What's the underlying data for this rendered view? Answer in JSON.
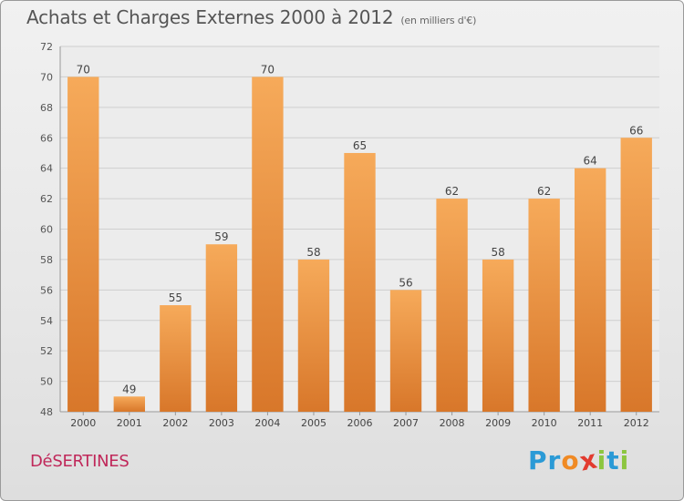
{
  "title": "Achats et Charges Externes 2000 à 2012",
  "subtitle": "(en milliers d'€)",
  "location": "DéSERTINES",
  "logo": {
    "letters": [
      "P",
      "r",
      "o",
      "x",
      "i",
      "t",
      "i"
    ],
    "colors": [
      "#2a9ad6",
      "#2a9ad6",
      "#f08a24",
      "#e23b2f",
      "#8cc63f",
      "#2a9ad6",
      "#8cc63f"
    ]
  },
  "colors": {
    "bar": "#f0963c",
    "bar_light": "#f6aa5a",
    "bar_dark": "#d8772a"
  },
  "chart_data": {
    "type": "bar",
    "categories": [
      "2000",
      "2001",
      "2002",
      "2003",
      "2004",
      "2005",
      "2006",
      "2007",
      "2008",
      "2009",
      "2010",
      "2011",
      "2012"
    ],
    "values": [
      70,
      49,
      55,
      59,
      70,
      58,
      65,
      56,
      62,
      58,
      62,
      64,
      66
    ],
    "data_labels": [
      "70",
      "49",
      "55",
      "59",
      "70",
      "58",
      "65",
      "56",
      "62",
      "58",
      "62",
      "64",
      "66"
    ],
    "ylim": [
      48,
      72
    ],
    "yticks": [
      "48",
      "50",
      "52",
      "54",
      "56",
      "58",
      "60",
      "62",
      "64",
      "66",
      "68",
      "70",
      "72"
    ],
    "grid": true
  }
}
